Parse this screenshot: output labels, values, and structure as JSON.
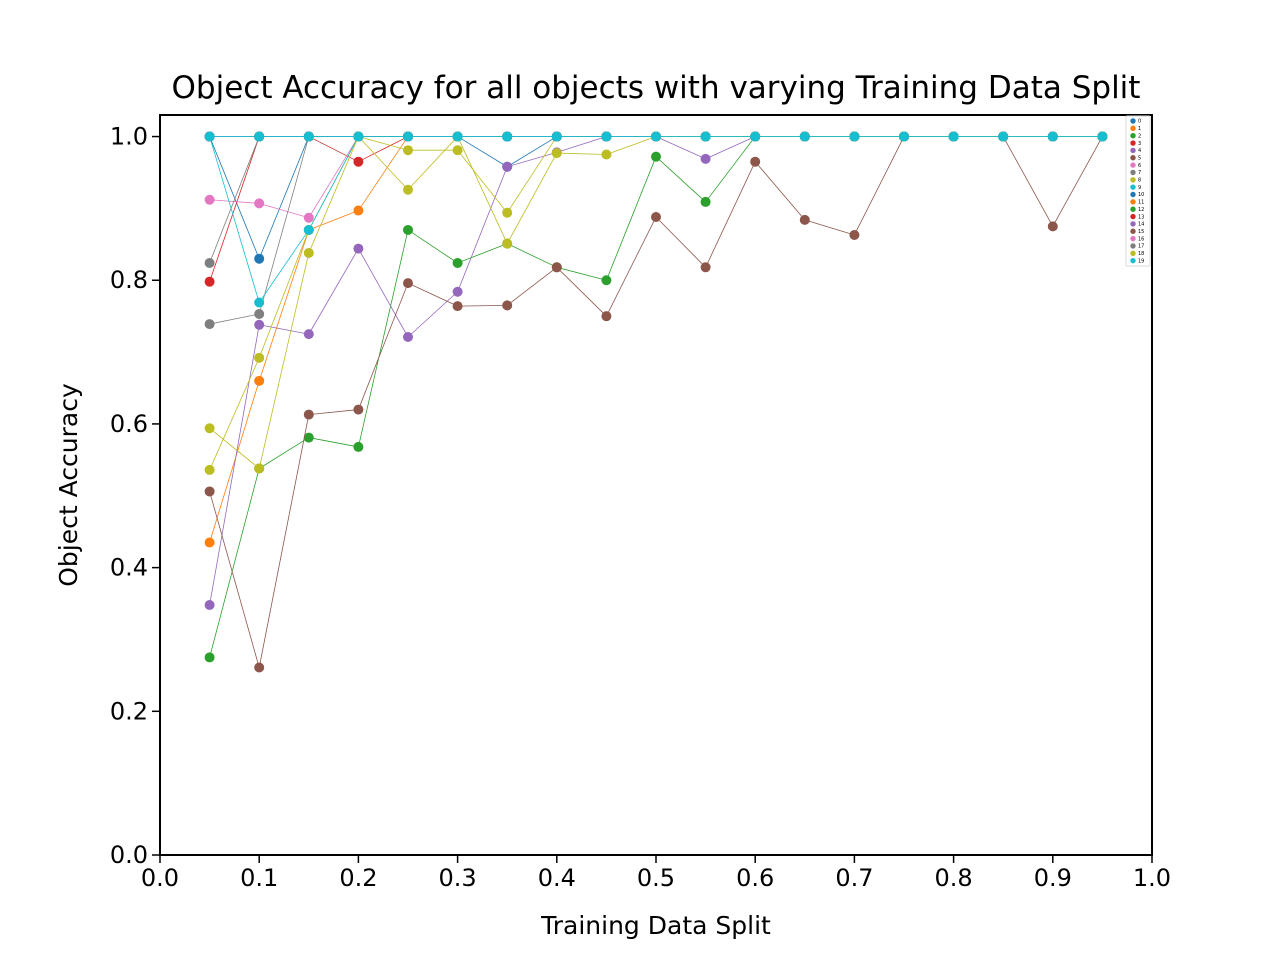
{
  "chart_data": {
    "type": "line",
    "title": "Object Accuracy for all objects with varying Training Data Split",
    "xlabel": "Training Data Split",
    "ylabel": "Object Accuracy",
    "xlim": [
      0.0,
      1.0
    ],
    "ylim": [
      0.0,
      1.03
    ],
    "xticks": [
      "0.0",
      "0.1",
      "0.2",
      "0.3",
      "0.4",
      "0.5",
      "0.6",
      "0.7",
      "0.8",
      "0.9",
      "1.0"
    ],
    "yticks": [
      "0.0",
      "0.2",
      "0.4",
      "0.6",
      "0.8",
      "1.0"
    ],
    "legend_position": "top-right",
    "grid": false,
    "x": [
      0.05,
      0.1,
      0.15,
      0.2,
      0.25,
      0.3,
      0.35,
      0.4,
      0.45,
      0.5,
      0.55,
      0.6,
      0.65,
      0.7,
      0.75,
      0.8,
      0.85,
      0.9,
      0.95
    ],
    "series": [
      {
        "name": "0",
        "color": "#1f77b4",
        "values": [
          1.0,
          0.83,
          1.0,
          1.0,
          1.0,
          1.0,
          0.958,
          1.0,
          1.0,
          1.0,
          1.0,
          1.0,
          1.0,
          1.0,
          1.0,
          1.0,
          1.0,
          1.0,
          1.0
        ]
      },
      {
        "name": "1",
        "color": "#ff7f0e",
        "values": [
          0.435,
          0.66,
          0.87,
          0.897,
          1.0,
          1.0,
          1.0,
          1.0,
          1.0,
          1.0,
          1.0,
          1.0,
          1.0,
          1.0,
          1.0,
          1.0,
          1.0,
          1.0,
          1.0
        ]
      },
      {
        "name": "2",
        "color": "#2ca02c",
        "values": [
          0.275,
          0.538,
          0.581,
          0.568,
          0.87,
          0.824,
          0.851,
          0.818,
          0.8,
          0.972,
          0.909,
          1.0,
          1.0,
          1.0,
          1.0,
          1.0,
          1.0,
          1.0,
          1.0
        ]
      },
      {
        "name": "3",
        "color": "#d62728",
        "values": [
          0.798,
          1.0,
          1.0,
          0.965,
          1.0,
          1.0,
          1.0,
          1.0,
          1.0,
          1.0,
          1.0,
          1.0,
          1.0,
          1.0,
          1.0,
          1.0,
          1.0,
          1.0,
          1.0
        ]
      },
      {
        "name": "4",
        "color": "#9467bd",
        "values": [
          0.348,
          0.738,
          0.725,
          0.844,
          0.721,
          0.784,
          0.958,
          0.978,
          1.0,
          1.0,
          0.969,
          1.0,
          1.0,
          1.0,
          1.0,
          1.0,
          1.0,
          1.0,
          1.0
        ]
      },
      {
        "name": "5",
        "color": "#8c564b",
        "values": [
          0.506,
          0.261,
          0.613,
          0.62,
          0.796,
          0.764,
          0.765,
          0.818,
          0.75,
          0.888,
          0.818,
          0.965,
          0.884,
          0.863,
          1.0,
          1.0,
          1.0,
          0.875,
          1.0
        ]
      },
      {
        "name": "6",
        "color": "#e377c2",
        "values": [
          0.912,
          0.907,
          0.887,
          1.0,
          1.0,
          1.0,
          1.0,
          1.0,
          1.0,
          1.0,
          1.0,
          1.0,
          1.0,
          1.0,
          1.0,
          1.0,
          1.0,
          1.0,
          1.0
        ]
      },
      {
        "name": "7",
        "color": "#7f7f7f",
        "values": [
          0.739,
          0.753,
          1.0,
          1.0,
          1.0,
          1.0,
          1.0,
          1.0,
          1.0,
          1.0,
          1.0,
          1.0,
          1.0,
          1.0,
          1.0,
          1.0,
          1.0,
          1.0,
          1.0
        ]
      },
      {
        "name": "8",
        "color": "#bcbd22",
        "values": [
          0.536,
          0.692,
          0.87,
          1.0,
          0.981,
          0.981,
          0.894,
          1.0,
          1.0,
          1.0,
          1.0,
          1.0,
          1.0,
          1.0,
          1.0,
          1.0,
          1.0,
          1.0,
          1.0
        ]
      },
      {
        "name": "9",
        "color": "#17becf",
        "values": [
          1.0,
          0.769,
          0.87,
          1.0,
          1.0,
          1.0,
          1.0,
          1.0,
          1.0,
          1.0,
          1.0,
          1.0,
          1.0,
          1.0,
          1.0,
          1.0,
          1.0,
          1.0,
          1.0
        ]
      },
      {
        "name": "10",
        "color": "#1f77b4",
        "values": [
          1.0,
          1.0,
          1.0,
          1.0,
          1.0,
          1.0,
          1.0,
          1.0,
          1.0,
          1.0,
          1.0,
          1.0,
          1.0,
          1.0,
          1.0,
          1.0,
          1.0,
          1.0,
          1.0
        ]
      },
      {
        "name": "11",
        "color": "#ff7f0e",
        "values": [
          1.0,
          1.0,
          1.0,
          1.0,
          1.0,
          1.0,
          1.0,
          1.0,
          1.0,
          1.0,
          1.0,
          1.0,
          1.0,
          1.0,
          1.0,
          1.0,
          1.0,
          1.0,
          1.0
        ]
      },
      {
        "name": "12",
        "color": "#2ca02c",
        "values": [
          1.0,
          1.0,
          1.0,
          1.0,
          1.0,
          1.0,
          1.0,
          1.0,
          1.0,
          1.0,
          1.0,
          1.0,
          1.0,
          1.0,
          1.0,
          1.0,
          1.0,
          1.0,
          1.0
        ]
      },
      {
        "name": "13",
        "color": "#d62728",
        "values": [
          1.0,
          1.0,
          1.0,
          1.0,
          1.0,
          1.0,
          1.0,
          1.0,
          1.0,
          1.0,
          1.0,
          1.0,
          1.0,
          1.0,
          1.0,
          1.0,
          1.0,
          1.0,
          1.0
        ]
      },
      {
        "name": "14",
        "color": "#9467bd",
        "values": [
          1.0,
          1.0,
          1.0,
          1.0,
          1.0,
          1.0,
          1.0,
          1.0,
          1.0,
          1.0,
          1.0,
          1.0,
          1.0,
          1.0,
          1.0,
          1.0,
          1.0,
          1.0,
          1.0
        ]
      },
      {
        "name": "15",
        "color": "#8c564b",
        "values": [
          1.0,
          1.0,
          1.0,
          1.0,
          1.0,
          1.0,
          1.0,
          1.0,
          1.0,
          1.0,
          1.0,
          1.0,
          1.0,
          1.0,
          1.0,
          1.0,
          1.0,
          1.0,
          1.0
        ]
      },
      {
        "name": "16",
        "color": "#e377c2",
        "values": [
          1.0,
          1.0,
          1.0,
          1.0,
          1.0,
          1.0,
          1.0,
          1.0,
          1.0,
          1.0,
          1.0,
          1.0,
          1.0,
          1.0,
          1.0,
          1.0,
          1.0,
          1.0,
          1.0
        ]
      },
      {
        "name": "17",
        "color": "#7f7f7f",
        "values": [
          0.824,
          1.0,
          1.0,
          1.0,
          1.0,
          1.0,
          1.0,
          1.0,
          1.0,
          1.0,
          1.0,
          1.0,
          1.0,
          1.0,
          1.0,
          1.0,
          1.0,
          1.0,
          1.0
        ]
      },
      {
        "name": "18",
        "color": "#bcbd22",
        "values": [
          0.594,
          0.538,
          0.838,
          1.0,
          0.926,
          1.0,
          0.851,
          0.977,
          0.975,
          1.0,
          1.0,
          1.0,
          1.0,
          1.0,
          1.0,
          1.0,
          1.0,
          1.0,
          1.0
        ]
      },
      {
        "name": "19",
        "color": "#17becf",
        "values": [
          1.0,
          1.0,
          1.0,
          1.0,
          1.0,
          1.0,
          1.0,
          1.0,
          1.0,
          1.0,
          1.0,
          1.0,
          1.0,
          1.0,
          1.0,
          1.0,
          1.0,
          1.0,
          1.0
        ]
      }
    ]
  }
}
